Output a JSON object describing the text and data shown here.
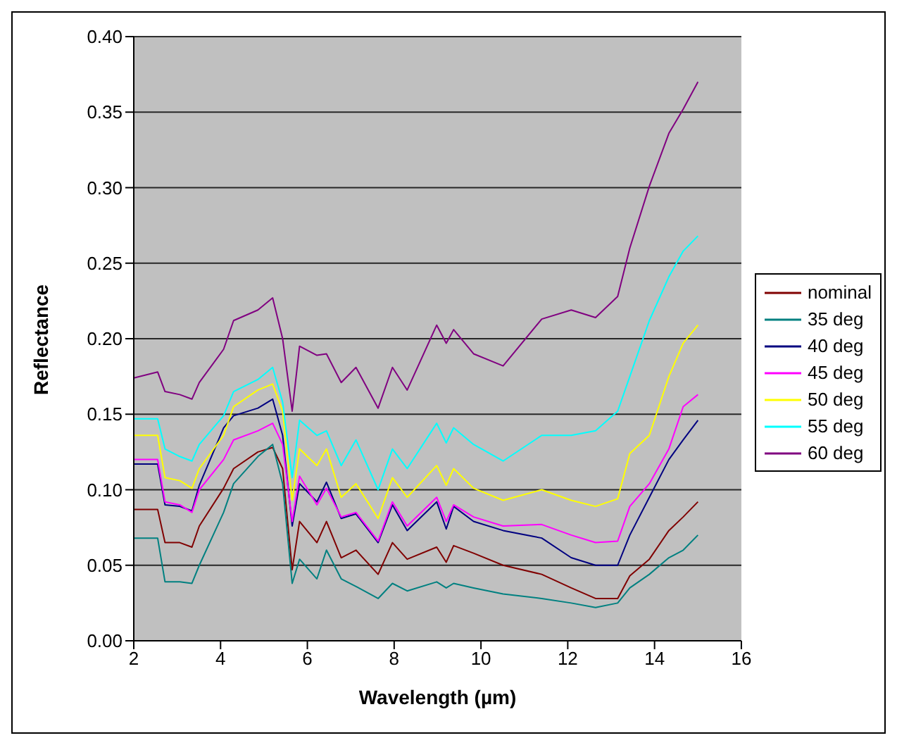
{
  "chart_data": {
    "type": "line",
    "xlabel": "Wavelength (µm)",
    "ylabel": "Reflectance",
    "x": [
      2,
      2.55,
      2.72,
      3.06,
      3.34,
      3.51,
      4.07,
      4.3,
      4.86,
      5.2,
      5.43,
      5.65,
      5.82,
      6.22,
      6.44,
      6.78,
      7.12,
      7.63,
      7.96,
      8.3,
      8.98,
      9.2,
      9.37,
      9.83,
      10.51,
      11.4,
      12.08,
      12.64,
      13.15,
      13.43,
      13.88,
      14.33,
      14.66,
      15
    ],
    "series": [
      {
        "name": "nominal",
        "color": "#800000",
        "values": [
          0.087,
          0.087,
          0.065,
          0.065,
          0.062,
          0.076,
          0.101,
          0.114,
          0.125,
          0.128,
          0.114,
          0.047,
          0.079,
          0.065,
          0.079,
          0.055,
          0.06,
          0.044,
          0.065,
          0.054,
          0.062,
          0.052,
          0.063,
          0.058,
          0.05,
          0.044,
          0.035,
          0.028,
          0.028,
          0.043,
          0.054,
          0.073,
          0.082,
          0.092
        ]
      },
      {
        "name": "35 deg",
        "color": "#008080",
        "values": [
          0.068,
          0.068,
          0.039,
          0.039,
          0.038,
          0.05,
          0.085,
          0.104,
          0.122,
          0.13,
          0.104,
          0.038,
          0.054,
          0.041,
          0.06,
          0.041,
          0.036,
          0.028,
          0.038,
          0.033,
          0.039,
          0.035,
          0.038,
          0.035,
          0.031,
          0.028,
          0.025,
          0.022,
          0.025,
          0.035,
          0.044,
          0.055,
          0.06,
          0.07
        ]
      },
      {
        "name": "40 deg",
        "color": "#000080",
        "values": [
          0.117,
          0.117,
          0.09,
          0.089,
          0.086,
          0.103,
          0.141,
          0.149,
          0.154,
          0.16,
          0.136,
          0.076,
          0.104,
          0.092,
          0.105,
          0.081,
          0.084,
          0.065,
          0.09,
          0.073,
          0.092,
          0.074,
          0.089,
          0.079,
          0.073,
          0.068,
          0.055,
          0.05,
          0.05,
          0.07,
          0.095,
          0.12,
          0.133,
          0.146
        ]
      },
      {
        "name": "45 deg",
        "color": "#ff00ff",
        "values": [
          0.12,
          0.12,
          0.092,
          0.09,
          0.085,
          0.1,
          0.12,
          0.133,
          0.139,
          0.144,
          0.13,
          0.079,
          0.109,
          0.09,
          0.101,
          0.082,
          0.085,
          0.066,
          0.092,
          0.076,
          0.095,
          0.079,
          0.09,
          0.082,
          0.076,
          0.077,
          0.07,
          0.065,
          0.066,
          0.089,
          0.104,
          0.127,
          0.155,
          0.163
        ]
      },
      {
        "name": "50 deg",
        "color": "#ffff00",
        "values": [
          0.136,
          0.136,
          0.108,
          0.106,
          0.101,
          0.114,
          0.136,
          0.155,
          0.166,
          0.17,
          0.152,
          0.093,
          0.127,
          0.116,
          0.127,
          0.095,
          0.104,
          0.081,
          0.108,
          0.095,
          0.116,
          0.103,
          0.114,
          0.101,
          0.093,
          0.1,
          0.093,
          0.089,
          0.094,
          0.124,
          0.136,
          0.175,
          0.197,
          0.209
        ]
      },
      {
        "name": "55 deg",
        "color": "#00ffff",
        "values": [
          0.147,
          0.147,
          0.127,
          0.122,
          0.119,
          0.13,
          0.149,
          0.165,
          0.173,
          0.181,
          0.158,
          0.108,
          0.146,
          0.136,
          0.139,
          0.116,
          0.133,
          0.1,
          0.127,
          0.114,
          0.144,
          0.131,
          0.141,
          0.13,
          0.119,
          0.136,
          0.136,
          0.139,
          0.152,
          0.175,
          0.212,
          0.241,
          0.258,
          0.268
        ]
      },
      {
        "name": "60 deg",
        "color": "#800080",
        "values": [
          0.174,
          0.178,
          0.165,
          0.163,
          0.16,
          0.171,
          0.193,
          0.212,
          0.219,
          0.227,
          0.2,
          0.152,
          0.195,
          0.189,
          0.19,
          0.171,
          0.181,
          0.154,
          0.181,
          0.166,
          0.209,
          0.197,
          0.206,
          0.19,
          0.182,
          0.213,
          0.219,
          0.214,
          0.228,
          0.26,
          0.301,
          0.336,
          0.352,
          0.37
        ]
      }
    ],
    "xlim": [
      2,
      16
    ],
    "xticks": [
      2,
      4,
      6,
      8,
      10,
      12,
      14,
      16
    ],
    "ylim": [
      0,
      0.4
    ],
    "yticks": [
      {
        "value": 0,
        "label": "0.00"
      },
      {
        "value": 0.05,
        "label": "0.05"
      },
      {
        "value": 0.1,
        "label": "0.10"
      },
      {
        "value": 0.15,
        "label": "0.15"
      },
      {
        "value": 0.2,
        "label": "0.20"
      },
      {
        "value": 0.25,
        "label": "0.25"
      },
      {
        "value": 0.3,
        "label": "0.30"
      },
      {
        "value": 0.35,
        "label": "0.35"
      },
      {
        "value": 0.4,
        "label": "0.40"
      }
    ],
    "grid": "y",
    "legend": "right",
    "marker": "none",
    "line_style": "solid"
  }
}
